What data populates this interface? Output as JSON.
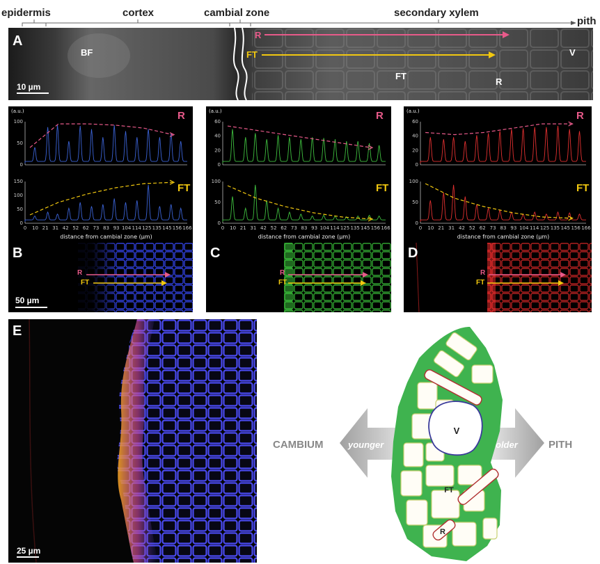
{
  "header": {
    "epidermis": "epidermis",
    "cortex": "cortex",
    "cambial_zone": "cambial zone",
    "secondary_xylem": "secondary xylem",
    "pith": "pith"
  },
  "panelA": {
    "label": "A",
    "scale_bar": "10 µm",
    "BF": "BF",
    "FT": "FT",
    "R": "R",
    "V": "V",
    "arrow_R": "R",
    "arrow_FT": "FT"
  },
  "plots": {
    "au": "(a.u.)",
    "xlabel": "distance from cambial zone (µm)",
    "x_ticks": [
      "0",
      "10",
      "21",
      "31",
      "42",
      "52",
      "62",
      "73",
      "83",
      "93",
      "104",
      "114",
      "125",
      "135",
      "145",
      "156",
      "166"
    ],
    "R_label": "R",
    "FT_label": "FT",
    "B": {
      "R_yticks": [
        "100",
        "50",
        "0"
      ],
      "FT_yticks": [
        "150",
        "100",
        "50",
        "0"
      ]
    },
    "C": {
      "R_yticks": [
        "60",
        "40",
        "20",
        "0"
      ],
      "FT_yticks": [
        "100",
        "50",
        "0"
      ]
    },
    "D": {
      "R_yticks": [
        "60",
        "40",
        "20",
        "0"
      ],
      "FT_yticks": [
        "100",
        "50",
        "0"
      ]
    }
  },
  "panels_BCD": {
    "B": "B",
    "C": "C",
    "D": "D",
    "arrow_R": "R",
    "arrow_FT": "FT",
    "scale_bar": "50 µm"
  },
  "panelE": {
    "label": "E",
    "scale_bar": "25 µm"
  },
  "diagram": {
    "cambium": "CAMBIUM",
    "younger": "younger",
    "older": "older",
    "pith": "PITH",
    "V": "V",
    "FT": "FT",
    "R": "R"
  },
  "colors": {
    "R_accent": "#e85a8a",
    "FT_accent": "#f2c80f",
    "blue_series": "#3b63d6",
    "green_series": "#3fbf3f",
    "red_series": "#e23030",
    "diagram_green": "#3fb34f"
  }
}
